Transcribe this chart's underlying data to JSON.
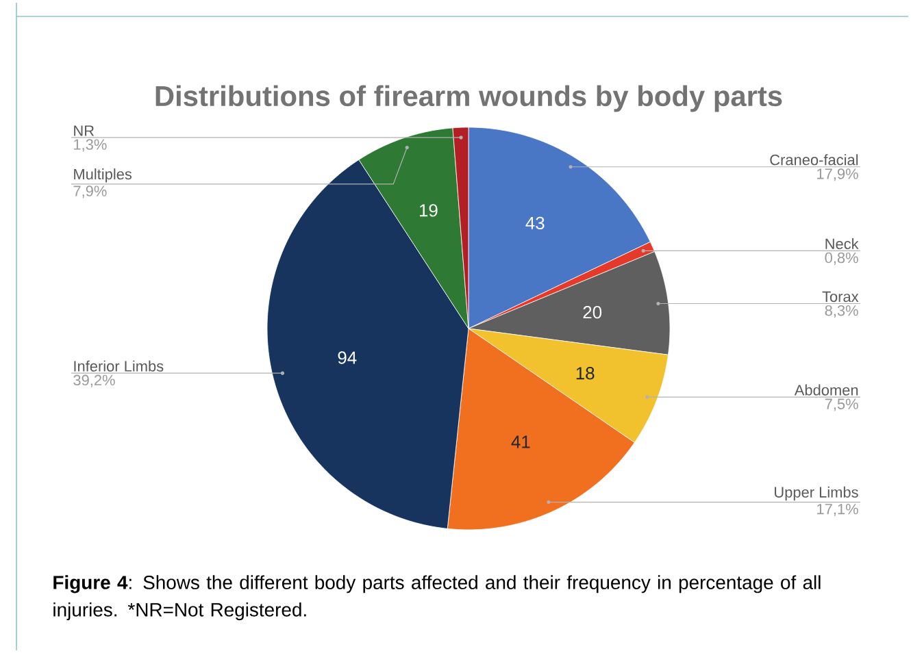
{
  "chart_data": {
    "type": "pie",
    "title": "Distributions of firearm wounds by body parts",
    "categories": [
      "Craneo-facial",
      "Neck",
      "Torax",
      "Abdomen",
      "Upper Limbs",
      "Inferior Limbs",
      "Multiples",
      "NR"
    ],
    "values": [
      43,
      2,
      20,
      18,
      41,
      94,
      19,
      3
    ],
    "colors": [
      "#4a76c6",
      "#e53a2a",
      "#5f5f5f",
      "#f2c12e",
      "#f07020",
      "#17345e",
      "#2e7a35",
      "#b22026"
    ],
    "value_labels": [
      "43",
      null,
      "20",
      "18",
      "41",
      "94",
      "19",
      null
    ],
    "annotations": [
      {
        "text": "17,9%",
        "x": "Craneo-facial"
      },
      {
        "text": "0,8%",
        "x": "Neck"
      },
      {
        "text": "8,3%",
        "x": "Torax"
      },
      {
        "text": "7,5%",
        "x": "Abdomen"
      },
      {
        "text": "17,1%",
        "x": "Upper Limbs"
      },
      {
        "text": "39,2%",
        "x": "Inferior Limbs"
      },
      {
        "text": "7,9%",
        "x": "Multiples"
      },
      {
        "text": "1,3%",
        "x": "NR"
      },
      "**Figure 4**: Shows the different body parts affected and their frequency in percentage of all injuries. *NR=Not Registered."
    ]
  }
}
